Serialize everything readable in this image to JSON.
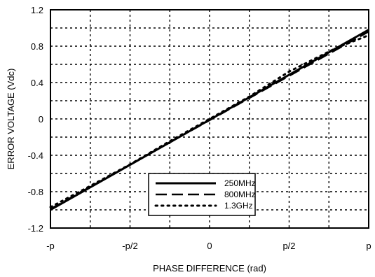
{
  "chart_data": {
    "type": "line",
    "title": "",
    "xlabel": "PHASE DIFFERENCE (rad)",
    "ylabel": "ERROR VOLTAGE (Vdc)",
    "xlim": [
      -3.14159,
      3.14159
    ],
    "ylim": [
      -1.2,
      1.2
    ],
    "x_ticks": [
      {
        "value": -3.14159,
        "label": "-p"
      },
      {
        "value": -1.5708,
        "label": "-p/2"
      },
      {
        "value": 0,
        "label": "0"
      },
      {
        "value": 1.5708,
        "label": "p/2"
      },
      {
        "value": 3.14159,
        "label": "p"
      }
    ],
    "y_ticks": [
      {
        "value": -1.2,
        "label": "-1.2"
      },
      {
        "value": -0.8,
        "label": "-0.8"
      },
      {
        "value": -0.4,
        "label": "-0.4"
      },
      {
        "value": 0,
        "label": "0"
      },
      {
        "value": 0.4,
        "label": "0.4"
      },
      {
        "value": 0.8,
        "label": "0.8"
      },
      {
        "value": 1.2,
        "label": "1.2"
      }
    ],
    "grid": true,
    "legend_position": "bottom-center",
    "series": [
      {
        "name": "250MHz",
        "style": "solid",
        "x": [
          -3.14159,
          3.14159
        ],
        "y": [
          -1.0,
          0.98
        ]
      },
      {
        "name": "800MHz",
        "style": "dashed",
        "x": [
          -3.14159,
          3.14159
        ],
        "y": [
          -0.99,
          0.96
        ]
      },
      {
        "name": "1.3GHz",
        "style": "dotted",
        "x": [
          -3.14159,
          -2.5,
          -1.57,
          -0.8,
          0,
          0.8,
          1.57,
          2.5,
          3.14159
        ],
        "y": [
          -0.97,
          -0.78,
          -0.5,
          -0.25,
          0,
          0.25,
          0.52,
          0.78,
          0.92
        ]
      }
    ]
  }
}
